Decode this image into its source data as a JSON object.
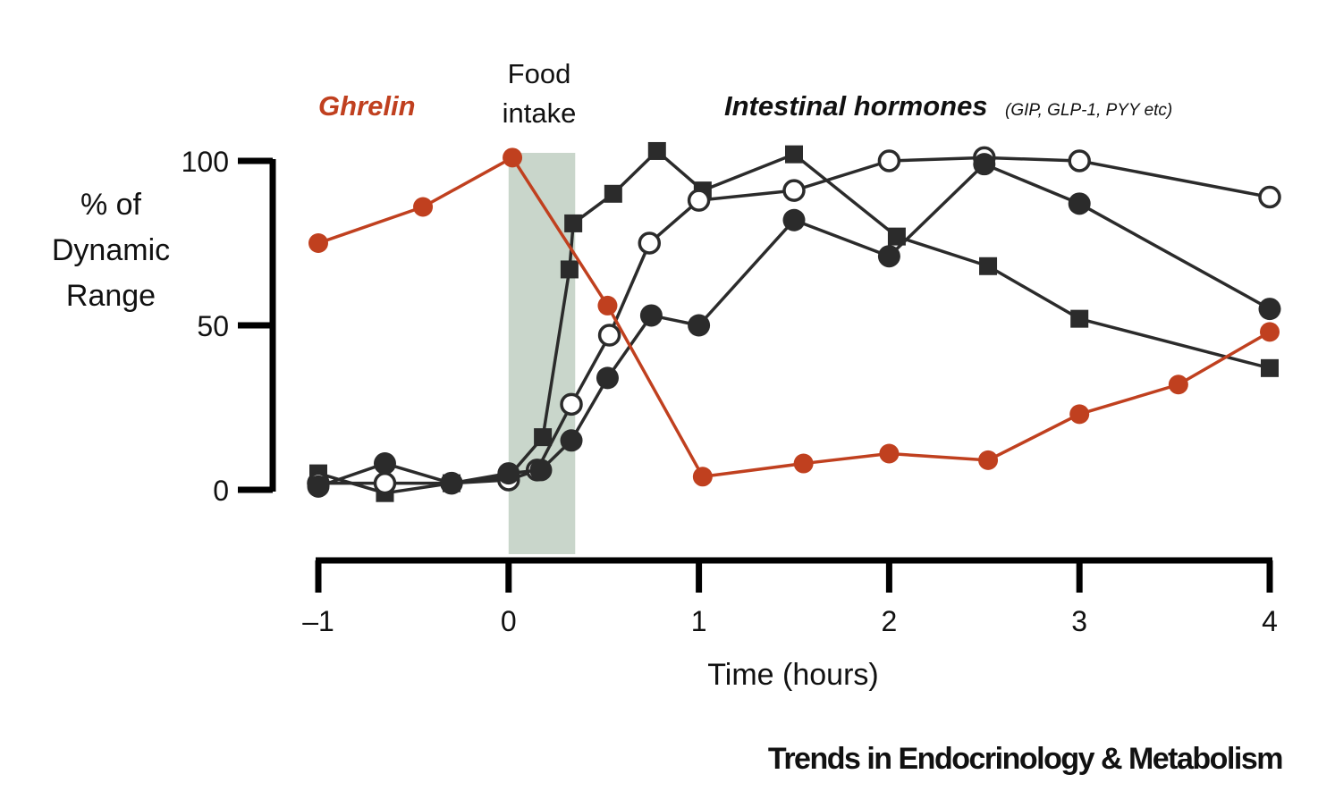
{
  "chart_data": {
    "type": "line",
    "y_title_lines": [
      "% of",
      "Dynamic",
      "Range"
    ],
    "xlabel": "Time (hours)",
    "x_ticks": [
      -1,
      0,
      1,
      2,
      3,
      4
    ],
    "x_tick_labels": [
      "–1",
      "0",
      "1",
      "2",
      "3",
      "4"
    ],
    "y_ticks": [
      0,
      50,
      100
    ],
    "y_tick_labels": [
      "0",
      "50",
      "100"
    ],
    "xlim": [
      -1,
      4
    ],
    "ylim": [
      0,
      100
    ],
    "shaded_region": {
      "x_start": 0,
      "x_end": 0.35,
      "color": "#c9d6cb",
      "label_lines": [
        "Food",
        "intake"
      ]
    },
    "ghrelin_label": "Ghrelin",
    "hormones_label": "Intestinal hormones",
    "hormones_sublabel": "(GIP, GLP-1, PYY etc)",
    "colors": {
      "ghrelin": "#c0401f",
      "hormone": "#2b2b2b",
      "axis": "#000000"
    },
    "series": [
      {
        "name": "Ghrelin",
        "marker": "circle-small",
        "color": "#c0401f",
        "points": [
          [
            -1,
            75
          ],
          [
            -0.45,
            86
          ],
          [
            0.02,
            101
          ],
          [
            0.52,
            56
          ],
          [
            1.02,
            4
          ],
          [
            1.55,
            8
          ],
          [
            2.0,
            11
          ],
          [
            2.52,
            9
          ],
          [
            3.0,
            23
          ],
          [
            3.52,
            32
          ],
          [
            4.0,
            48
          ]
        ]
      },
      {
        "name": "Hormone (squares)",
        "marker": "square",
        "color": "#2b2b2b",
        "points": [
          [
            -1,
            5
          ],
          [
            -0.65,
            -1
          ],
          [
            -0.3,
            2
          ],
          [
            0.0,
            4
          ],
          [
            0.18,
            16
          ],
          [
            0.32,
            67
          ],
          [
            0.34,
            81
          ],
          [
            0.55,
            90
          ],
          [
            0.78,
            103
          ],
          [
            1.02,
            91
          ],
          [
            1.5,
            102
          ],
          [
            2.04,
            77
          ],
          [
            2.52,
            68
          ],
          [
            3.0,
            52
          ],
          [
            4.0,
            37
          ]
        ]
      },
      {
        "name": "Hormone (open circles)",
        "marker": "circle-open",
        "color": "#2b2b2b",
        "points": [
          [
            -1,
            2
          ],
          [
            -0.65,
            2
          ],
          [
            -0.3,
            2
          ],
          [
            0.0,
            3
          ],
          [
            0.15,
            6
          ],
          [
            0.33,
            26
          ],
          [
            0.53,
            47
          ],
          [
            0.74,
            75
          ],
          [
            1.0,
            88
          ],
          [
            1.5,
            91
          ],
          [
            2.0,
            100
          ],
          [
            2.5,
            101
          ],
          [
            3.0,
            100
          ],
          [
            4.0,
            89
          ]
        ]
      },
      {
        "name": "Hormone (filled circles)",
        "marker": "circle-filled",
        "color": "#2b2b2b",
        "points": [
          [
            -1,
            1
          ],
          [
            -0.65,
            8
          ],
          [
            -0.3,
            2
          ],
          [
            0.0,
            5
          ],
          [
            0.17,
            6
          ],
          [
            0.33,
            15
          ],
          [
            0.52,
            34
          ],
          [
            0.75,
            53
          ],
          [
            1.0,
            50
          ],
          [
            1.5,
            82
          ],
          [
            2.0,
            71
          ],
          [
            2.5,
            99
          ],
          [
            3.0,
            87
          ],
          [
            4.0,
            55
          ]
        ]
      }
    ]
  },
  "footer": {
    "journal": "Trends in Endocrinology & Metabolism"
  }
}
